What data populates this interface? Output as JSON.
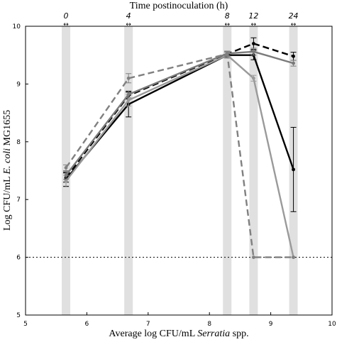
{
  "chart_data": {
    "type": "line",
    "top_title": "Time postinoculation (h)",
    "xlabel_parts": [
      "Average log CFU/mL ",
      "Serratia",
      " spp."
    ],
    "ylabel_parts": [
      "Log CFU/mL ",
      "E. coli",
      " MG1655"
    ],
    "xlim": [
      5,
      10
    ],
    "ylim": [
      5,
      10
    ],
    "x_ticks": [
      5,
      6,
      7,
      8,
      9,
      10
    ],
    "y_ticks": [
      5,
      6,
      7,
      8,
      9,
      10
    ],
    "threshold": 6,
    "time_points": [
      {
        "label": "0",
        "x": 5.66
      },
      {
        "label": "4",
        "x": 6.68
      },
      {
        "label": "8",
        "x": 8.29
      },
      {
        "label": "12",
        "x": 8.72
      },
      {
        "label": "24",
        "x": 9.37
      }
    ],
    "series": [
      {
        "color": "#000000",
        "dash": "",
        "x": [
          5.66,
          6.68,
          8.29,
          8.72,
          9.37
        ],
        "y": [
          7.35,
          8.65,
          9.5,
          9.5,
          7.52
        ],
        "err": [
          0.12,
          0.22,
          0.05,
          0.08,
          0.73
        ]
      },
      {
        "color": "#000000",
        "dash": "9,5",
        "x": [
          5.66,
          6.68,
          8.29,
          8.72,
          9.37
        ],
        "y": [
          7.38,
          8.8,
          9.52,
          9.7,
          9.48
        ],
        "err": [
          0.08,
          0.06,
          0.05,
          0.1,
          0.07
        ]
      },
      {
        "color": "#9a9a9a",
        "dash": "",
        "x": [
          5.66,
          6.68,
          8.29,
          8.72,
          9.37
        ],
        "y": [
          7.32,
          8.72,
          9.5,
          9.1,
          6.0
        ],
        "err": [
          0.1,
          0.1,
          0.05,
          0.05,
          0.0
        ]
      },
      {
        "color": "#7a7a7a",
        "dash": "",
        "x": [
          5.66,
          6.68,
          8.29,
          8.72,
          9.37
        ],
        "y": [
          7.42,
          8.82,
          9.53,
          9.56,
          9.36
        ],
        "err": [
          0.07,
          0.06,
          0.04,
          0.06,
          0.05
        ]
      },
      {
        "color": "#808080",
        "dash": "9,5",
        "x": [
          5.66,
          6.68,
          8.29,
          8.72,
          9.37
        ],
        "y": [
          7.55,
          9.1,
          9.52,
          6.0,
          6.0
        ],
        "err": [
          0.05,
          0.08,
          0.04,
          0.0,
          0.0
        ]
      }
    ]
  }
}
